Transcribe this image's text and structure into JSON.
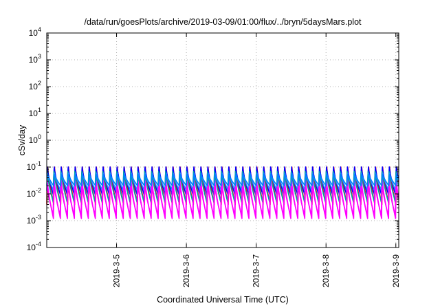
{
  "chart_data": {
    "type": "line",
    "title": "/data/run/goesPlots/archive/2019-03-09/01:00/flux/../bryn/5daysMars.plot",
    "xlabel": "Coordinated Universal Time (UTC)",
    "ylabel": "cSv/day",
    "yscale": "log",
    "ylim": [
      0.0001,
      10000
    ],
    "y_ticks": [
      {
        "base": "10",
        "exp": "-4",
        "value": 0.0001
      },
      {
        "base": "10",
        "exp": "-3",
        "value": 0.001
      },
      {
        "base": "10",
        "exp": "-2",
        "value": 0.01
      },
      {
        "base": "10",
        "exp": "-1",
        "value": 0.1
      },
      {
        "base": "10",
        "exp": "0",
        "value": 1
      },
      {
        "base": "10",
        "exp": "1",
        "value": 10
      },
      {
        "base": "10",
        "exp": "2",
        "value": 100
      },
      {
        "base": "10",
        "exp": "3",
        "value": 1000
      },
      {
        "base": "10",
        "exp": "4",
        "value": 10000
      }
    ],
    "xlim": [
      "2019-03-04 00:00",
      "2019-03-09 01:00"
    ],
    "x_ticks": [
      "2019-3-5",
      "2019-3-6",
      "2019-3-7",
      "2019-3-8",
      "2019-3-9"
    ],
    "grid": true,
    "pattern_note_cycle_hours": 2.4,
    "series": [
      {
        "color": "#ff0000",
        "peak": 0.14,
        "trough": 0.004
      },
      {
        "color": "#0000ff",
        "peak": 0.13,
        "trough": 0.009
      },
      {
        "color": "#00a0a0",
        "peak": 0.09,
        "trough": 0.005
      },
      {
        "color": "#1e90ff",
        "peak": 0.07,
        "trough": 0.013
      },
      {
        "color": "#ff00ff",
        "peak": 0.045,
        "trough": 0.0012
      },
      {
        "color": "#ff00ff",
        "peak": 0.03,
        "trough": 0.0016
      },
      {
        "color": "#0080ff",
        "peak": 0.06,
        "trough": 0.02
      }
    ]
  }
}
